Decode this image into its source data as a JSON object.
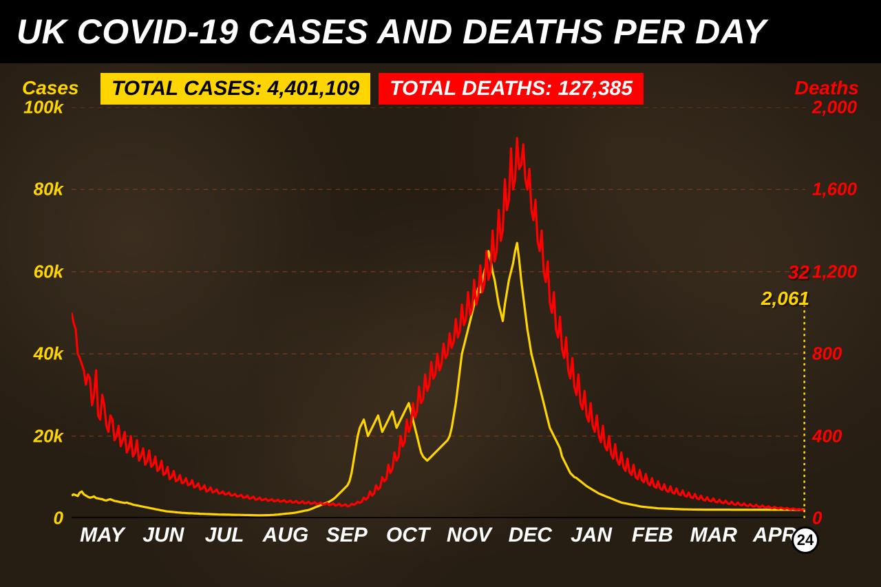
{
  "title": "UK COVID-19 CASES AND DEATHS PER DAY",
  "total_cases_badge": "TOTAL CASES: 4,401,109",
  "total_deaths_badge": "TOTAL DEATHS: 127,385",
  "colors": {
    "cases": "#ffd500",
    "deaths": "#ff0000",
    "grid_yellow": "#9b8a1e",
    "grid_red": "#7a1414",
    "title_bg": "#000000",
    "title_fg": "#ffffff",
    "background": "#2a2218",
    "axis_dark": "#1a1510"
  },
  "y_left": {
    "label": "Cases",
    "min": 0,
    "max": 100000,
    "ticks": [
      0,
      20000,
      40000,
      60000,
      80000,
      100000
    ],
    "tick_labels": [
      "0",
      "20k",
      "40k",
      "60k",
      "80k",
      "100k"
    ]
  },
  "y_right": {
    "label": "Deaths",
    "min": 0,
    "max": 2000,
    "ticks": [
      0,
      400,
      800,
      1200,
      1600,
      2000
    ],
    "tick_labels": [
      "0",
      "400",
      "800",
      "1,200",
      "1,600",
      "2,000"
    ]
  },
  "x_months": [
    "MAY",
    "JUN",
    "JUL",
    "AUG",
    "SEP",
    "OCT",
    "NOV",
    "DEC",
    "JAN",
    "FEB",
    "MAR",
    "APR"
  ],
  "end_day": "24",
  "latest_cases": {
    "value": "2,061",
    "color": "#ffd500"
  },
  "latest_deaths": {
    "value": "32",
    "color": "#ff0000"
  },
  "chart": {
    "type": "dual-axis-line",
    "line_width": 3,
    "n_days": 360,
    "cases_series": [
      5500,
      5800,
      5600,
      5400,
      6200,
      6500,
      5800,
      5500,
      5200,
      5000,
      5100,
      5300,
      4900,
      4800,
      4700,
      4600,
      4400,
      4300,
      4500,
      4600,
      4400,
      4200,
      4100,
      4000,
      3900,
      3800,
      3700,
      3800,
      3600,
      3500,
      3300,
      3200,
      3100,
      3000,
      2900,
      2800,
      2700,
      2600,
      2500,
      2400,
      2300,
      2200,
      2100,
      2000,
      1900,
      1800,
      1700,
      1650,
      1600,
      1550,
      1500,
      1450,
      1400,
      1350,
      1300,
      1280,
      1250,
      1220,
      1200,
      1180,
      1150,
      1120,
      1100,
      1080,
      1060,
      1040,
      1020,
      1000,
      980,
      960,
      940,
      920,
      900,
      890,
      880,
      870,
      860,
      850,
      840,
      830,
      820,
      810,
      800,
      790,
      780,
      770,
      760,
      750,
      740,
      730,
      720,
      710,
      700,
      710,
      720,
      730,
      740,
      750,
      780,
      800,
      850,
      900,
      950,
      1000,
      1050,
      1100,
      1150,
      1200,
      1250,
      1300,
      1400,
      1500,
      1600,
      1700,
      1800,
      1900,
      2000,
      2200,
      2400,
      2600,
      2800,
      3000,
      3200,
      3400,
      3600,
      3800,
      4000,
      4300,
      4600,
      5000,
      5500,
      6000,
      6500,
      7000,
      7500,
      8000,
      9000,
      11000,
      14000,
      17000,
      20000,
      22000,
      23000,
      24000,
      22000,
      20000,
      21000,
      22000,
      23000,
      24000,
      25000,
      23000,
      21000,
      22000,
      23000,
      24000,
      25000,
      26000,
      24000,
      22000,
      23000,
      24000,
      25000,
      26000,
      27000,
      28000,
      26000,
      24000,
      22000,
      20000,
      18000,
      16000,
      15000,
      14500,
      14000,
      14500,
      15000,
      15500,
      16000,
      16500,
      17000,
      17500,
      18000,
      18500,
      19000,
      20000,
      22000,
      25000,
      28000,
      32000,
      36000,
      40000,
      42000,
      44000,
      46000,
      48000,
      50000,
      52000,
      54000,
      56000,
      55000,
      58000,
      60000,
      62000,
      65000,
      63000,
      60000,
      58000,
      55000,
      52000,
      50000,
      48000,
      52000,
      55000,
      58000,
      60000,
      62000,
      65000,
      67000,
      63000,
      58000,
      54000,
      50000,
      46000,
      43000,
      40000,
      38000,
      36000,
      34000,
      32000,
      30000,
      28000,
      26000,
      24000,
      22000,
      21000,
      20000,
      19000,
      18000,
      17000,
      15000,
      14000,
      13000,
      12000,
      11000,
      10500,
      10000,
      9800,
      9400,
      9000,
      8600,
      8200,
      7800,
      7500,
      7200,
      6900,
      6600,
      6300,
      6000,
      5800,
      5600,
      5400,
      5200,
      5000,
      4800,
      4600,
      4400,
      4200,
      4000,
      3800,
      3700,
      3600,
      3500,
      3400,
      3300,
      3200,
      3100,
      3000,
      2900,
      2800,
      2750,
      2700,
      2650,
      2600,
      2550,
      2500,
      2450,
      2400,
      2380,
      2360,
      2340,
      2320,
      2300,
      2280,
      2260,
      2240,
      2220,
      2200,
      2180,
      2160,
      2150,
      2140,
      2130,
      2120,
      2110,
      2100,
      2095,
      2090,
      2085,
      2080,
      2078,
      2076,
      2074,
      2072,
      2070,
      2069,
      2068,
      2067,
      2066,
      2065,
      2064,
      2063,
      2063,
      2062,
      2062,
      2062,
      2061,
      2061,
      2061,
      2061,
      2061,
      2061,
      2061,
      2061,
      2061,
      2061,
      2061,
      2061,
      2061,
      2061,
      2061,
      2061,
      2061,
      2061,
      2061,
      2061,
      2061,
      2061,
      2061,
      2061,
      2061,
      2061,
      2061,
      2061,
      2061,
      2061,
      2061,
      2061,
      2061,
      2061
    ],
    "deaths_series": [
      1000,
      950,
      920,
      800,
      780,
      750,
      720,
      650,
      700,
      680,
      550,
      600,
      720,
      500,
      480,
      600,
      550,
      450,
      420,
      500,
      480,
      380,
      400,
      450,
      350,
      380,
      420,
      320,
      340,
      400,
      300,
      320,
      380,
      280,
      300,
      340,
      260,
      280,
      330,
      250,
      260,
      300,
      230,
      240,
      280,
      210,
      220,
      250,
      190,
      200,
      230,
      180,
      185,
      210,
      170,
      175,
      195,
      160,
      165,
      185,
      150,
      155,
      170,
      140,
      145,
      160,
      130,
      135,
      150,
      125,
      130,
      140,
      120,
      122,
      130,
      115,
      118,
      125,
      110,
      112,
      118,
      105,
      108,
      114,
      100,
      102,
      110,
      95,
      98,
      105,
      90,
      92,
      100,
      88,
      90,
      95,
      85,
      87,
      92,
      82,
      84,
      90,
      80,
      82,
      88,
      78,
      80,
      86,
      76,
      78,
      84,
      74,
      76,
      82,
      72,
      74,
      80,
      70,
      72,
      78,
      68,
      70,
      76,
      66,
      68,
      74,
      64,
      66,
      72,
      62,
      64,
      70,
      60,
      62,
      68,
      58,
      60,
      70,
      65,
      70,
      80,
      75,
      80,
      100,
      90,
      100,
      130,
      110,
      120,
      160,
      140,
      150,
      200,
      180,
      190,
      260,
      220,
      240,
      320,
      280,
      300,
      400,
      350,
      370,
      480,
      420,
      450,
      560,
      490,
      520,
      640,
      560,
      580,
      700,
      620,
      650,
      760,
      680,
      700,
      800,
      720,
      750,
      850,
      780,
      800,
      900,
      830,
      860,
      970,
      880,
      910,
      1040,
      940,
      970,
      1100,
      990,
      1020,
      1160,
      1040,
      1080,
      1230,
      1100,
      1140,
      1300,
      1160,
      1200,
      1400,
      1250,
      1300,
      1500,
      1350,
      1400,
      1650,
      1500,
      1550,
      1800,
      1600,
      1650,
      1850,
      1700,
      1720,
      1820,
      1650,
      1600,
      1700,
      1500,
      1450,
      1550,
      1350,
      1300,
      1400,
      1200,
      1150,
      1250,
      1050,
      1000,
      1100,
      920,
      880,
      980,
      820,
      780,
      880,
      720,
      680,
      780,
      640,
      600,
      700,
      560,
      530,
      620,
      500,
      470,
      560,
      450,
      420,
      500,
      400,
      370,
      450,
      350,
      330,
      400,
      310,
      290,
      360,
      280,
      260,
      320,
      250,
      230,
      290,
      225,
      210,
      260,
      200,
      190,
      235,
      185,
      175,
      215,
      170,
      160,
      195,
      155,
      148,
      180,
      145,
      138,
      165,
      135,
      128,
      155,
      125,
      120,
      145,
      118,
      112,
      135,
      110,
      105,
      125,
      102,
      98,
      118,
      96,
      92,
      110,
      90,
      86,
      102,
      85,
      82,
      96,
      80,
      77,
      90,
      76,
      73,
      85,
      72,
      69,
      80,
      68,
      65,
      76,
      65,
      62,
      72,
      62,
      59,
      68,
      59,
      56,
      65,
      56,
      54,
      62,
      54,
      52,
      58,
      51,
      49,
      55,
      49,
      47,
      52,
      47,
      45,
      50,
      45,
      43,
      48,
      43,
      42,
      45,
      40,
      38,
      42,
      38,
      36,
      40,
      36,
      35,
      38,
      35,
      34,
      36,
      34,
      33,
      35,
      33,
      32,
      34,
      32,
      32,
      33,
      32,
      32
    ]
  }
}
